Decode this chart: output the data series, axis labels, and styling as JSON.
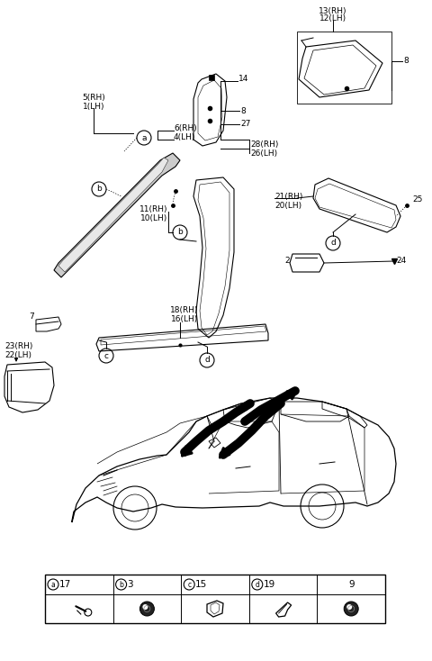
{
  "bg_color": "#ffffff",
  "fig_width": 4.8,
  "fig_height": 7.34,
  "dpi": 100,
  "table_cells": [
    {
      "label": "a",
      "num": "17"
    },
    {
      "label": "b",
      "num": "3"
    },
    {
      "label": "c",
      "num": "15"
    },
    {
      "label": "d",
      "num": "19"
    },
    {
      "label": "",
      "num": "9"
    }
  ]
}
